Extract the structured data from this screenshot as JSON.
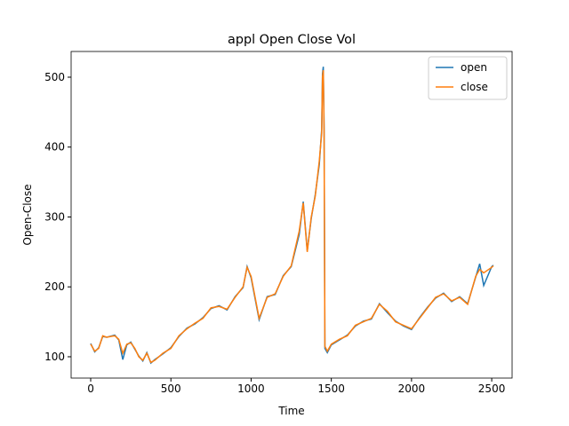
{
  "chart_data": {
    "type": "line",
    "title": "appl Open Close Vol",
    "xlabel": "Time",
    "ylabel": "Open-Close",
    "x": [
      0,
      25,
      50,
      75,
      100,
      150,
      175,
      200,
      225,
      250,
      275,
      300,
      325,
      350,
      375,
      400,
      450,
      500,
      550,
      600,
      650,
      700,
      750,
      800,
      850,
      900,
      950,
      975,
      1000,
      1050,
      1100,
      1150,
      1200,
      1250,
      1300,
      1325,
      1350,
      1375,
      1400,
      1425,
      1440,
      1445,
      1450,
      1455,
      1460,
      1475,
      1500,
      1550,
      1600,
      1650,
      1700,
      1750,
      1800,
      1850,
      1900,
      1950,
      2000,
      2050,
      2100,
      2150,
      2200,
      2250,
      2300,
      2350,
      2400,
      2425,
      2450,
      2500,
      2510
    ],
    "series": [
      {
        "name": "open",
        "color": "#1f77b4",
        "values": [
          119,
          107,
          113,
          129,
          128,
          131,
          124,
          96,
          117,
          121,
          111,
          101,
          94,
          106,
          91,
          96,
          104,
          113,
          129,
          141,
          147,
          156,
          169,
          173,
          167,
          186,
          199,
          229,
          213,
          153,
          186,
          189,
          216,
          229,
          275,
          322,
          252,
          298,
          332,
          375,
          425,
          505,
          515,
          425,
          112,
          106,
          117,
          124,
          131,
          144,
          151,
          154,
          176,
          163,
          151,
          144,
          139,
          156,
          171,
          184,
          191,
          179,
          186,
          176,
          214,
          233,
          202,
          229,
          231
        ]
      },
      {
        "name": "close",
        "color": "#ff7f0e",
        "values": [
          118,
          108,
          112,
          130,
          128,
          130,
          125,
          105,
          118,
          120,
          112,
          100,
          95,
          105,
          92,
          95,
          105,
          112,
          130,
          140,
          148,
          155,
          170,
          172,
          168,
          185,
          200,
          228,
          215,
          155,
          185,
          190,
          215,
          230,
          280,
          320,
          250,
          300,
          330,
          380,
          420,
          500,
          510,
          420,
          115,
          108,
          118,
          125,
          130,
          145,
          150,
          155,
          175,
          165,
          150,
          145,
          140,
          155,
          170,
          185,
          190,
          180,
          185,
          175,
          215,
          225,
          220,
          228,
          230
        ]
      }
    ],
    "xlim": [
      -122,
      2627
    ],
    "ylim": [
      69.5,
      536.8
    ],
    "xticks": [
      0,
      500,
      1000,
      1500,
      2000,
      2500
    ],
    "yticks": [
      100,
      200,
      300,
      400,
      500
    ],
    "legend": "upper right"
  }
}
